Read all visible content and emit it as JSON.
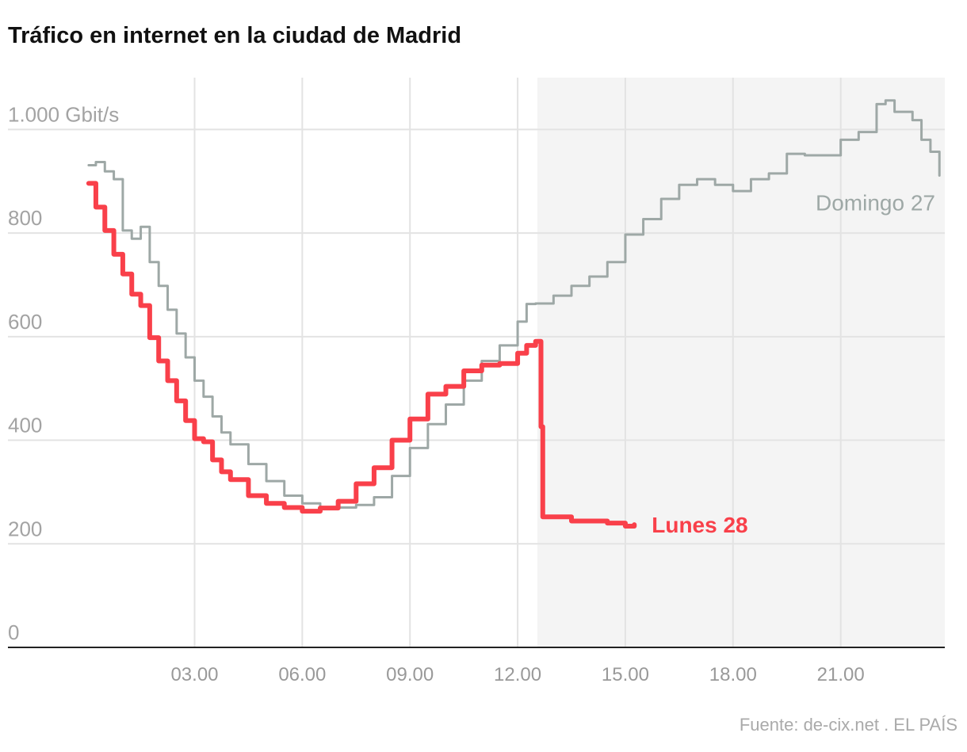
{
  "chart_data": {
    "type": "step-line",
    "title": "Tráfico en internet en la ciudad de Madrid",
    "source": "Fuente: de-cix.net . EL PAÍS",
    "xlim": [
      -2.2,
      23.9
    ],
    "ylim": [
      0,
      1100
    ],
    "xticks": [
      {
        "value": 3,
        "label": "03.00"
      },
      {
        "value": 6,
        "label": "06.00"
      },
      {
        "value": 9,
        "label": "09.00"
      },
      {
        "value": 12,
        "label": "12.00"
      },
      {
        "value": 15,
        "label": "15.00"
      },
      {
        "value": 18,
        "label": "18.00"
      },
      {
        "value": 21,
        "label": "21.00"
      }
    ],
    "yticks": [
      0,
      200,
      400,
      600,
      800,
      {
        "value": 1000,
        "label": "1.000 Gbit/s"
      }
    ],
    "grid": true,
    "highlight": [
      12.55,
      23.9
    ],
    "series": [
      {
        "name": "Domingo 27",
        "color": "#9ea8a6",
        "x": [
          0.05,
          0.25,
          0.5,
          0.75,
          1,
          1.25,
          1.5,
          1.75,
          2,
          2.25,
          2.5,
          2.75,
          3,
          3.25,
          3.5,
          3.75,
          4,
          4.5,
          5,
          5.5,
          6,
          6.5,
          7,
          7.5,
          8,
          8.5,
          9,
          9.5,
          10,
          10.5,
          11,
          11.5,
          12,
          12.25,
          12.5,
          13,
          13.5,
          14,
          14.5,
          15,
          15.5,
          16,
          16.5,
          17,
          17.5,
          18,
          18.5,
          19,
          19.5,
          20,
          20.5,
          21,
          21.5,
          22,
          22.25,
          22.5,
          22.75,
          23,
          23.25,
          23.5,
          23.75
        ],
        "values": [
          931,
          937,
          919,
          904,
          805,
          789,
          812,
          744,
          698,
          652,
          606,
          560,
          515,
          484,
          446,
          415,
          392,
          354,
          321,
          293,
          278,
          270,
          270,
          275,
          290,
          331,
          385,
          431,
          469,
          515,
          553,
          583,
          629,
          663,
          664,
          679,
          698,
          716,
          744,
          797,
          827,
          866,
          893,
          904,
          893,
          881,
          904,
          915,
          953,
          950,
          950,
          980,
          995,
          1049,
          1056,
          1034,
          1034,
          1018,
          980,
          957,
          911
        ]
      },
      {
        "name": "Lunes 28",
        "color": "#f9404a",
        "x": [
          0.05,
          0.25,
          0.5,
          0.75,
          1,
          1.25,
          1.5,
          1.75,
          2,
          2.25,
          2.5,
          2.75,
          3,
          3.25,
          3.5,
          3.75,
          4,
          4.5,
          5,
          5.5,
          6,
          6.5,
          7,
          7.5,
          8,
          8.5,
          9,
          9.5,
          10,
          10.5,
          11,
          11.5,
          12,
          12.25,
          12.5,
          12.65,
          12.7,
          13,
          13.5,
          14,
          14.5,
          15,
          15.25
        ],
        "values": [
          896,
          850,
          805,
          759,
          721,
          682,
          660,
          598,
          553,
          515,
          476,
          438,
          403,
          397,
          362,
          339,
          324,
          293,
          278,
          270,
          263,
          269,
          282,
          316,
          347,
          400,
          441,
          489,
          504,
          534,
          545,
          548,
          568,
          583,
          591,
          426,
          252,
          252,
          244,
          244,
          240,
          234,
          237
        ]
      }
    ]
  }
}
